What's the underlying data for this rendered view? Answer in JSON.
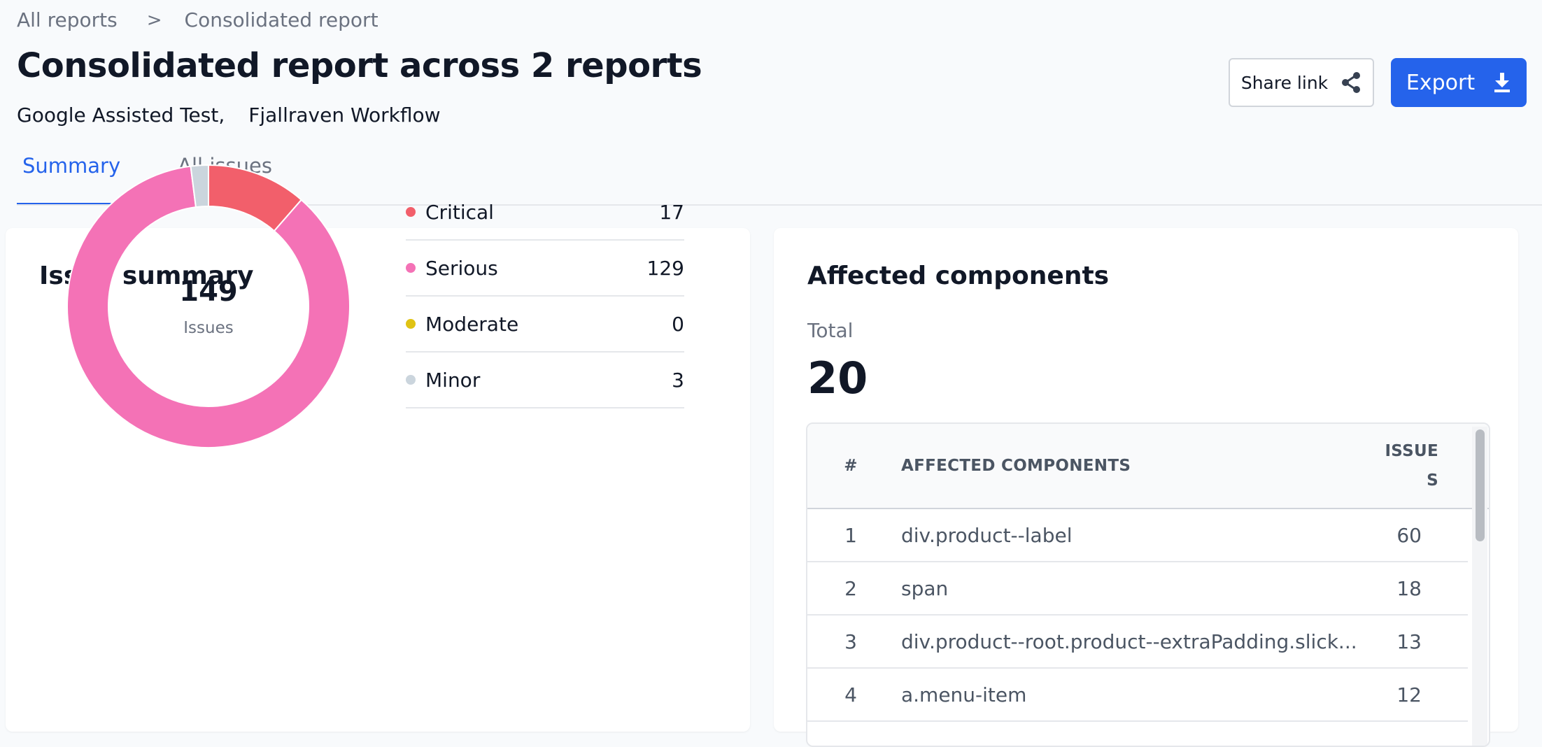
{
  "breadcrumb": {
    "root": "All reports",
    "current": "Consolidated report"
  },
  "header": {
    "title": "Consolidated report across 2 reports",
    "reports": [
      "Google Assisted Test,",
      "Fjallraven Workflow"
    ],
    "share_label": "Share link",
    "export_label": "Export"
  },
  "tabs": [
    {
      "label": "Summary",
      "active": true
    },
    {
      "label": "All issues",
      "active": false
    }
  ],
  "issue_summary": {
    "title": "Issue summary",
    "total": "149",
    "total_label": "Issues",
    "items": [
      {
        "name": "Critical",
        "value": 17,
        "color": "#f25f6b"
      },
      {
        "name": "Serious",
        "value": 129,
        "color": "#f472b6"
      },
      {
        "name": "Moderate",
        "value": 0,
        "color": "#e0c314"
      },
      {
        "name": "Minor",
        "value": 3,
        "color": "#cbd5dd"
      }
    ]
  },
  "affected_components": {
    "title": "Affected components",
    "total_label": "Total",
    "total": "20",
    "columns": {
      "num": "#",
      "name": "AFFECTED COMPONENTS",
      "issues": "ISSUES"
    },
    "rows": [
      {
        "num": "1",
        "name": "div.product--label",
        "issues": "60"
      },
      {
        "num": "2",
        "name": "span",
        "issues": "18"
      },
      {
        "num": "3",
        "name": "div.product--root.product--extraPadding.slick...",
        "issues": "13"
      },
      {
        "num": "4",
        "name": "a.menu-item",
        "issues": "12"
      }
    ]
  }
}
